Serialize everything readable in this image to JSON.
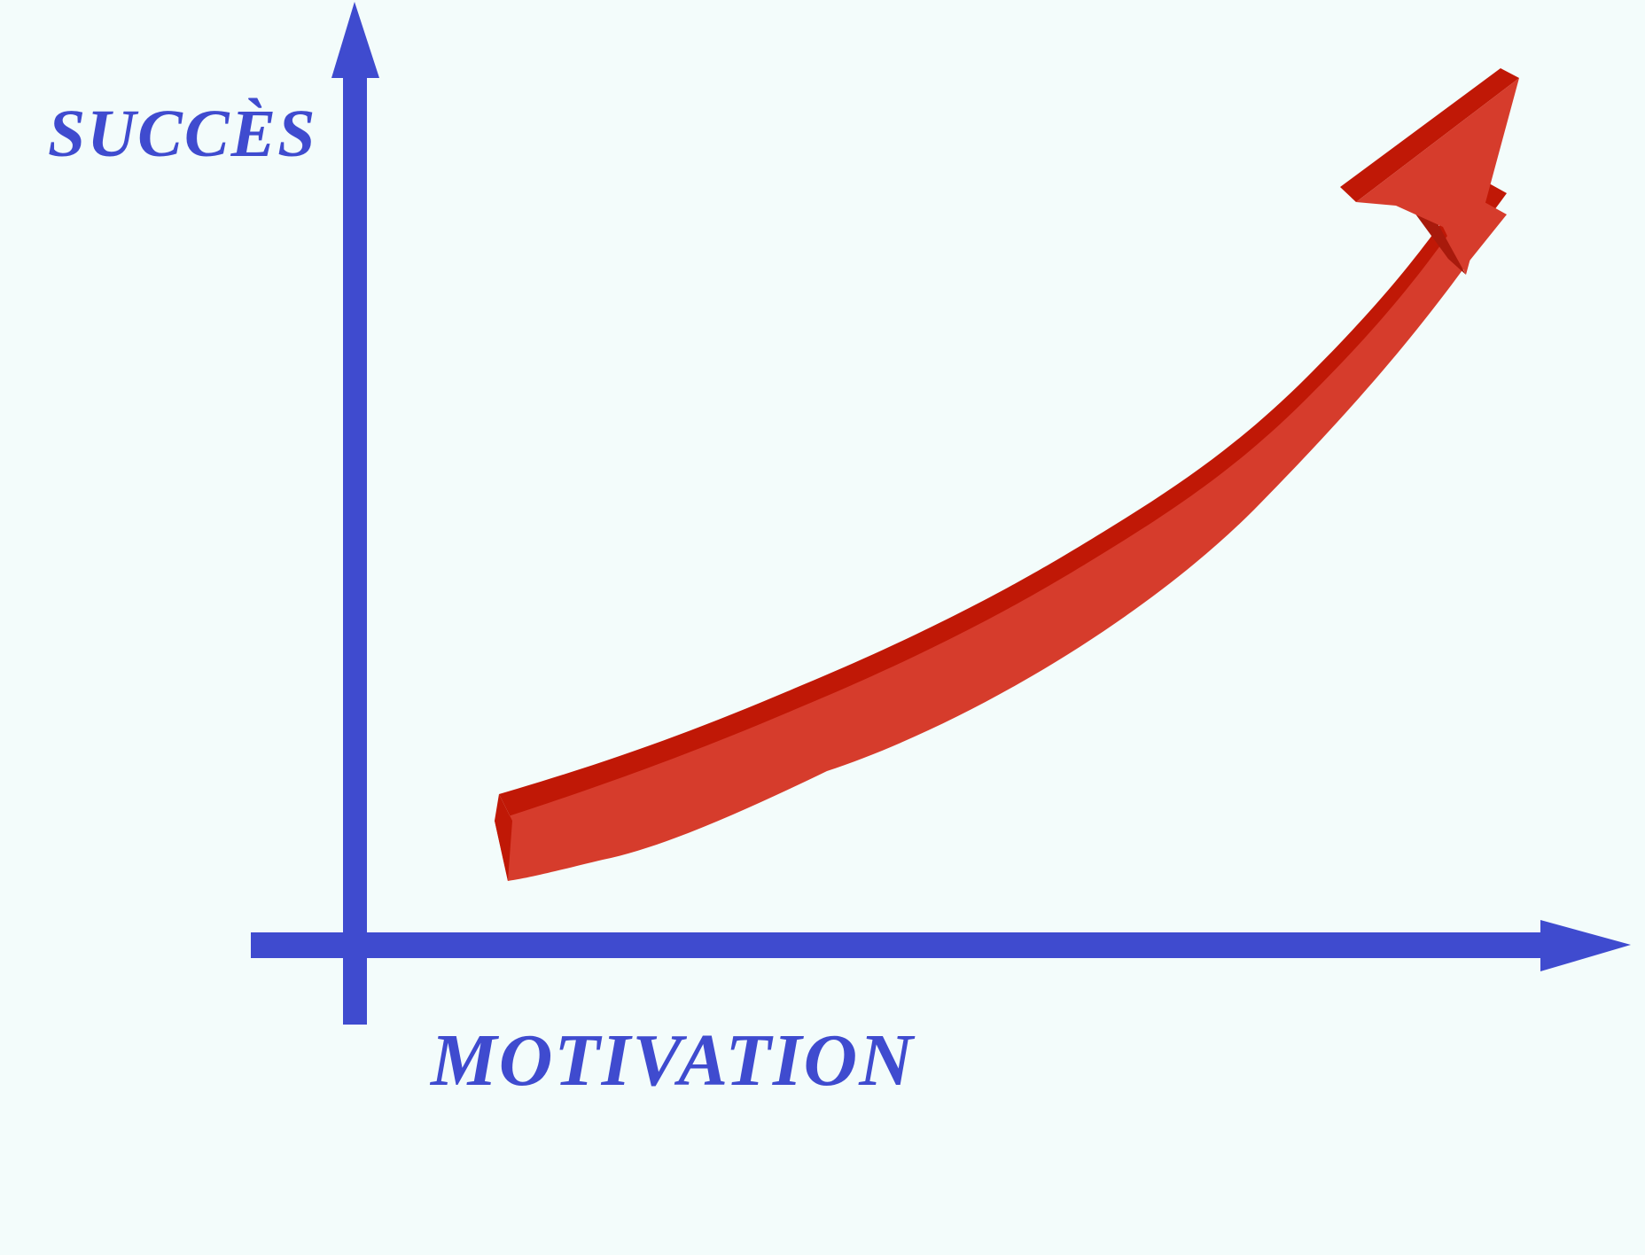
{
  "chart_data": {
    "type": "line",
    "title": "",
    "xlabel": "MOTIVATION",
    "ylabel": "SUCCÈS",
    "grid": false,
    "ticks": false,
    "series": [
      {
        "style": "3d-arrow",
        "trend": "rising, exponential-like curve"
      }
    ]
  },
  "colors": {
    "background": "#f3fcfb",
    "axis": "#3f4bcf",
    "arrow_front": "#d63c2c",
    "arrow_top": "#c01806",
    "arrow_shadow": "#a81a0c"
  }
}
